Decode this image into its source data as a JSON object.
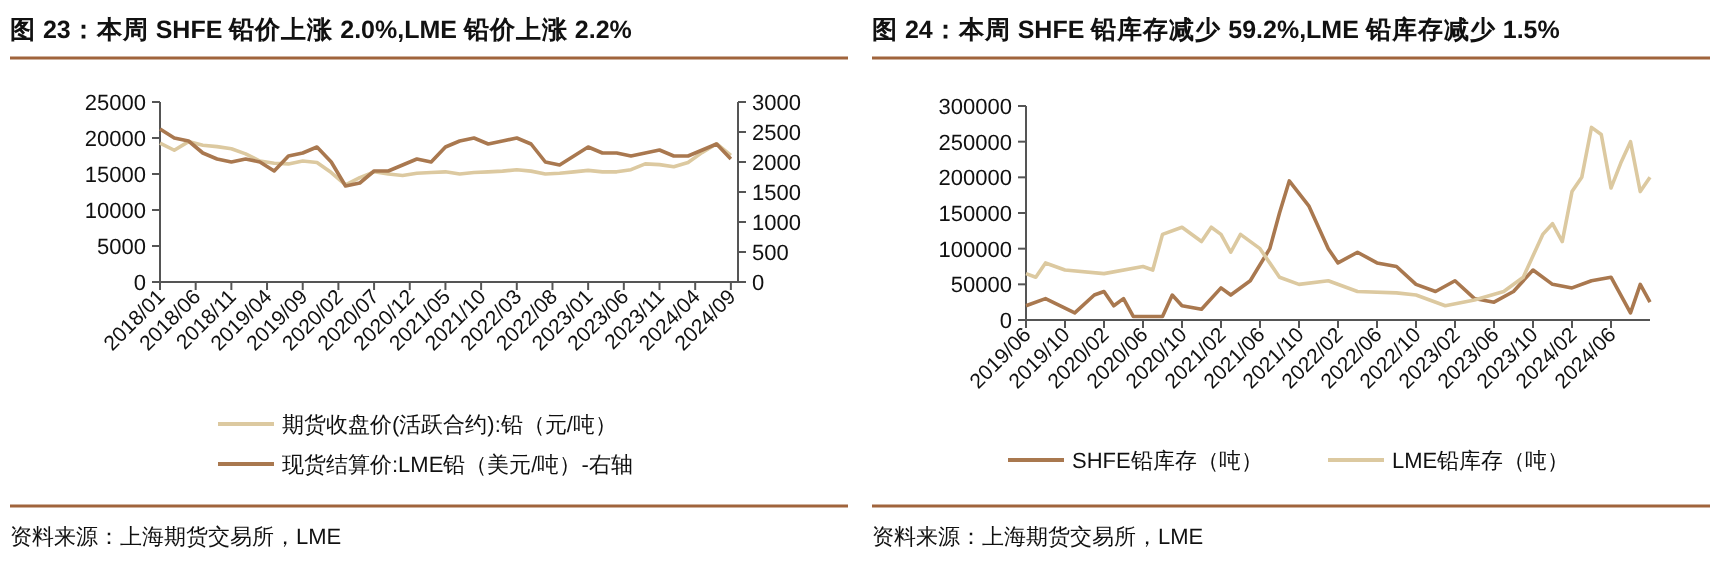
{
  "chart_data": [
    {
      "type": "line",
      "title": "图 23：本周 SHFE 铅价上涨 2.0%,LME 铅价上涨 2.2%",
      "legend": "bottom",
      "grid": false,
      "xlim": [
        "2018-01",
        "2024-10"
      ],
      "xticks": [
        {
          "value": "2018-01",
          "label": "2018/01"
        },
        {
          "value": "2018-06",
          "label": "2018/06"
        },
        {
          "value": "2018-11",
          "label": "2018/11"
        },
        {
          "value": "2019-04",
          "label": "2019/04"
        },
        {
          "value": "2019-09",
          "label": "2019/09"
        },
        {
          "value": "2020-02",
          "label": "2020/02"
        },
        {
          "value": "2020-07",
          "label": "2020/07"
        },
        {
          "value": "2020-12",
          "label": "2020/12"
        },
        {
          "value": "2021-05",
          "label": "2021/05"
        },
        {
          "value": "2021-10",
          "label": "2021/10"
        },
        {
          "value": "2022-03",
          "label": "2022/03"
        },
        {
          "value": "2022-08",
          "label": "2022/08"
        },
        {
          "value": "2023-01",
          "label": "2023/01"
        },
        {
          "value": "2023-06",
          "label": "2023/06"
        },
        {
          "value": "2023-11",
          "label": "2023/11"
        },
        {
          "value": "2024-04",
          "label": "2024/04"
        },
        {
          "value": "2024-09",
          "label": "2024/09"
        }
      ],
      "ylim": [
        0,
        25000
      ],
      "yticks": [
        0,
        5000,
        10000,
        15000,
        20000,
        25000
      ],
      "y2lim": [
        0,
        3000
      ],
      "y2ticks": [
        0,
        500,
        1000,
        1500,
        2000,
        2500,
        3000
      ],
      "x": [
        "2018-01",
        "2018-03",
        "2018-05",
        "2018-07",
        "2018-09",
        "2018-11",
        "2019-01",
        "2019-03",
        "2019-05",
        "2019-07",
        "2019-09",
        "2019-11",
        "2020-01",
        "2020-03",
        "2020-05",
        "2020-07",
        "2020-09",
        "2020-11",
        "2021-01",
        "2021-03",
        "2021-05",
        "2021-07",
        "2021-09",
        "2021-11",
        "2022-01",
        "2022-03",
        "2022-05",
        "2022-07",
        "2022-09",
        "2022-11",
        "2023-01",
        "2023-03",
        "2023-05",
        "2023-07",
        "2023-09",
        "2023-11",
        "2024-01",
        "2024-03",
        "2024-05",
        "2024-07",
        "2024-09"
      ],
      "series": [
        {
          "name": "期货收盘价(活跃合约):铅（元/吨）",
          "color": "#dcc9a0",
          "values": [
            19300,
            18300,
            19500,
            19000,
            18800,
            18500,
            17800,
            16800,
            16500,
            16400,
            16800,
            16600,
            15200,
            13500,
            14500,
            15300,
            15000,
            14800,
            15100,
            15200,
            15300,
            15000,
            15200,
            15300,
            15400,
            15600,
            15400,
            15000,
            15100,
            15300,
            15500,
            15300,
            15300,
            15600,
            16400,
            16300,
            16000,
            16600,
            18000,
            19200,
            17600
          ]
        },
        {
          "name": "现货结算价:LME铅（美元/吨）-右轴",
          "color": "#a9784f",
          "axis": "y2",
          "values": [
            2550,
            2400,
            2350,
            2150,
            2050,
            2000,
            2050,
            2000,
            1850,
            2100,
            2150,
            2250,
            2000,
            1600,
            1650,
            1850,
            1850,
            1950,
            2050,
            2000,
            2250,
            2350,
            2400,
            2300,
            2350,
            2400,
            2300,
            2000,
            1950,
            2100,
            2250,
            2150,
            2150,
            2100,
            2150,
            2200,
            2100,
            2100,
            2200,
            2300,
            2050
          ]
        }
      ],
      "annotations": [
        "资料来源：上海期货交易所，LME"
      ]
    },
    {
      "type": "line",
      "title": "图 24：本周 SHFE 铅库存减少 59.2%,LME 铅库存减少 1.5%",
      "legend": "bottom",
      "grid": false,
      "xlim": [
        "2019-06",
        "2024-10"
      ],
      "xticks": [
        {
          "value": "2019-06",
          "label": "2019/06"
        },
        {
          "value": "2019-10",
          "label": "2019/10"
        },
        {
          "value": "2020-02",
          "label": "2020/02"
        },
        {
          "value": "2020-06",
          "label": "2020/06"
        },
        {
          "value": "2020-10",
          "label": "2020/10"
        },
        {
          "value": "2021-02",
          "label": "2021/02"
        },
        {
          "value": "2021-06",
          "label": "2021/06"
        },
        {
          "value": "2021-10",
          "label": "2021/10"
        },
        {
          "value": "2022-02",
          "label": "2022/02"
        },
        {
          "value": "2022-06",
          "label": "2022/06"
        },
        {
          "value": "2022-10",
          "label": "2022/10"
        },
        {
          "value": "2023-02",
          "label": "2023/02"
        },
        {
          "value": "2023-06",
          "label": "2023/06"
        },
        {
          "value": "2023-10",
          "label": "2023/10"
        },
        {
          "value": "2024-02",
          "label": "2024/02"
        },
        {
          "value": "2024-06",
          "label": "2024/06"
        }
      ],
      "ylim": [
        0,
        300000
      ],
      "yticks": [
        0,
        50000,
        100000,
        150000,
        200000,
        250000,
        300000
      ],
      "series": [
        {
          "name": "SHFE铅库存（吨）",
          "color": "#a9784f",
          "x": [
            "2019-06",
            "2019-08",
            "2019-11",
            "2020-01",
            "2020-02",
            "2020-03",
            "2020-04",
            "2020-05",
            "2020-08",
            "2020-09",
            "2020-10",
            "2020-12",
            "2021-02",
            "2021-03",
            "2021-05",
            "2021-07",
            "2021-08",
            "2021-09",
            "2021-11",
            "2022-01",
            "2022-02",
            "2022-04",
            "2022-06",
            "2022-08",
            "2022-10",
            "2022-12",
            "2023-02",
            "2023-04",
            "2023-06",
            "2023-08",
            "2023-10",
            "2023-12",
            "2024-02",
            "2024-04",
            "2024-06",
            "2024-08",
            "2024-09",
            "2024-10"
          ],
          "values": [
            20000,
            30000,
            10000,
            35000,
            40000,
            20000,
            30000,
            5000,
            5000,
            35000,
            20000,
            15000,
            45000,
            35000,
            55000,
            100000,
            150000,
            195000,
            160000,
            100000,
            80000,
            95000,
            80000,
            75000,
            50000,
            40000,
            55000,
            30000,
            25000,
            40000,
            70000,
            50000,
            45000,
            55000,
            60000,
            10000,
            50000,
            25000
          ]
        },
        {
          "name": "LME铅库存（吨）",
          "color": "#dcc9a0",
          "x": [
            "2019-06",
            "2019-07",
            "2019-08",
            "2019-10",
            "2020-02",
            "2020-06",
            "2020-07",
            "2020-08",
            "2020-10",
            "2020-12",
            "2021-01",
            "2021-02",
            "2021-03",
            "2021-04",
            "2021-06",
            "2021-08",
            "2021-10",
            "2022-01",
            "2022-04",
            "2022-08",
            "2022-10",
            "2023-01",
            "2023-04",
            "2023-07",
            "2023-09",
            "2023-11",
            "2023-12",
            "2024-01",
            "2024-02",
            "2024-03",
            "2024-04",
            "2024-05",
            "2024-06",
            "2024-07",
            "2024-08",
            "2024-09",
            "2024-10"
          ],
          "values": [
            65000,
            60000,
            80000,
            70000,
            65000,
            75000,
            70000,
            120000,
            130000,
            110000,
            130000,
            120000,
            95000,
            120000,
            100000,
            60000,
            50000,
            55000,
            40000,
            38000,
            35000,
            20000,
            28000,
            40000,
            60000,
            120000,
            135000,
            110000,
            180000,
            200000,
            270000,
            260000,
            185000,
            220000,
            250000,
            180000,
            200000
          ]
        }
      ],
      "annotations": [
        "资料来源：上海期货交易所，LME"
      ]
    }
  ]
}
